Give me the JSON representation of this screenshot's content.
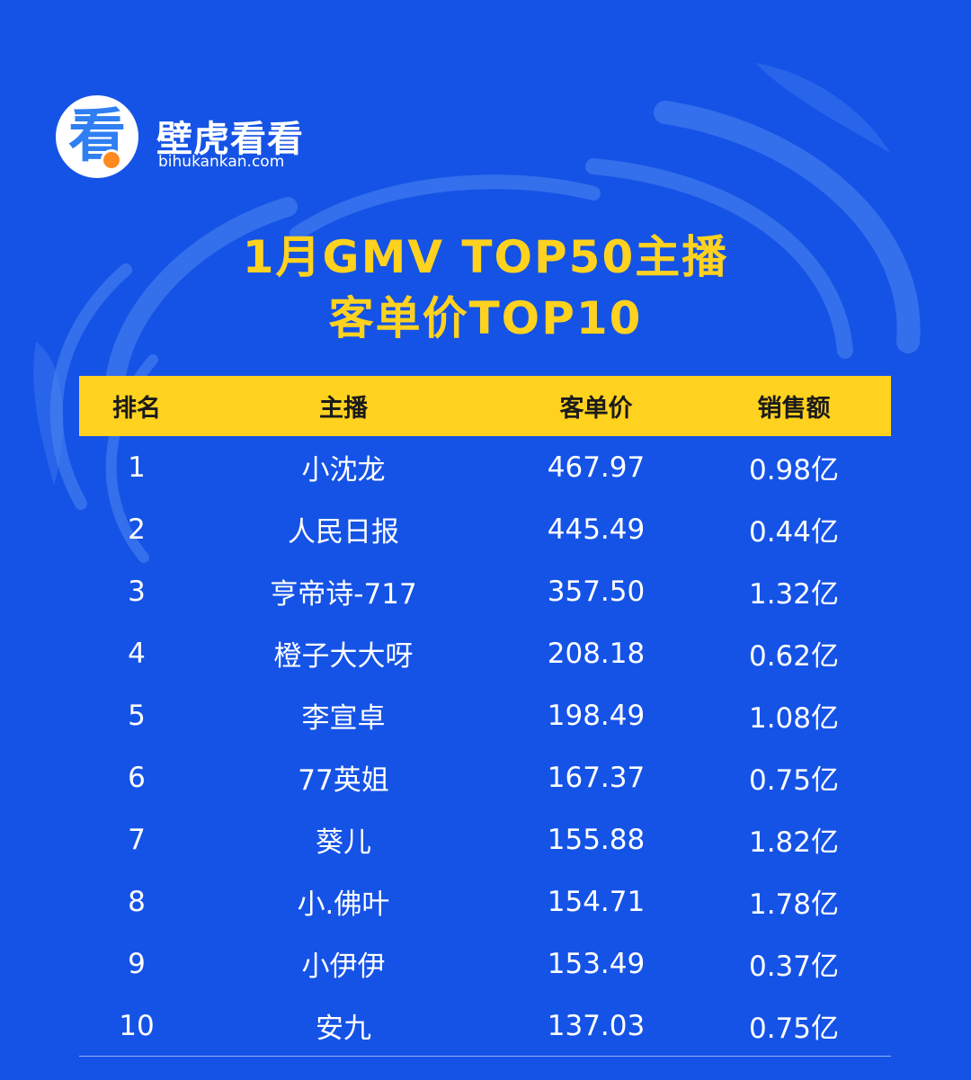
{
  "brand": {
    "logo_glyph": "看",
    "name": "壁虎看看",
    "url": "bihukankan.com"
  },
  "title": {
    "line1": "1月GMV TOP50主播",
    "line2": "客单价TOP10"
  },
  "table": {
    "headers": {
      "rank": "排名",
      "anchor": "主播",
      "avg_price": "客单价",
      "sales": "销售额"
    },
    "rows": [
      {
        "rank": "1",
        "anchor": "小沈龙",
        "avg_price": "467.97",
        "sales": "0.98亿"
      },
      {
        "rank": "2",
        "anchor": "人民日报",
        "avg_price": "445.49",
        "sales": "0.44亿"
      },
      {
        "rank": "3",
        "anchor": "亨帝诗-717",
        "avg_price": "357.50",
        "sales": "1.32亿"
      },
      {
        "rank": "4",
        "anchor": "橙子大大呀",
        "avg_price": "208.18",
        "sales": "0.62亿"
      },
      {
        "rank": "5",
        "anchor": "李宣卓",
        "avg_price": "198.49",
        "sales": "1.08亿"
      },
      {
        "rank": "6",
        "anchor": "77英姐",
        "avg_price": "167.37",
        "sales": "0.75亿"
      },
      {
        "rank": "7",
        "anchor": "葵儿",
        "avg_price": "155.88",
        "sales": "1.82亿"
      },
      {
        "rank": "8",
        "anchor": "小.佛叶",
        "avg_price": "154.71",
        "sales": "1.78亿"
      },
      {
        "rank": "9",
        "anchor": "小伊伊",
        "avg_price": "153.49",
        "sales": "0.37亿"
      },
      {
        "rank": "10",
        "anchor": "安九",
        "avg_price": "137.03",
        "sales": "0.75亿"
      }
    ]
  },
  "colors": {
    "background": "#1553e6",
    "accent_yellow": "#ffd21f",
    "logo_blue": "#2f7ef2",
    "logo_orange": "#ff8a1f"
  }
}
